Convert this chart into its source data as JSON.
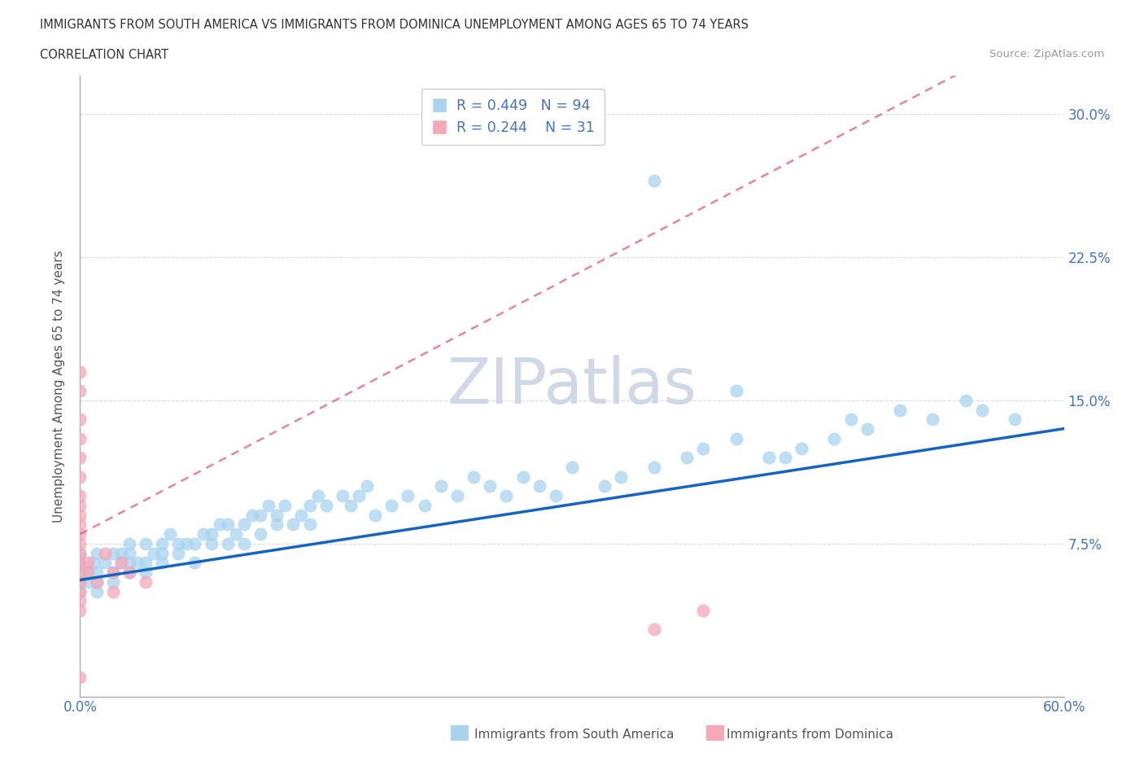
{
  "title_line1": "IMMIGRANTS FROM SOUTH AMERICA VS IMMIGRANTS FROM DOMINICA UNEMPLOYMENT AMONG AGES 65 TO 74 YEARS",
  "title_line2": "CORRELATION CHART",
  "source_text": "Source: ZipAtlas.com",
  "ylabel": "Unemployment Among Ages 65 to 74 years",
  "xlim": [
    0.0,
    0.6
  ],
  "ylim": [
    -0.005,
    0.32
  ],
  "xtick_positions": [
    0.0,
    0.075,
    0.15,
    0.225,
    0.3,
    0.375,
    0.45,
    0.525,
    0.6
  ],
  "xtick_labels": [
    "0.0%",
    "",
    "",
    "",
    "",
    "",
    "",
    "",
    "60.0%"
  ],
  "ytick_positions": [
    0.0,
    0.075,
    0.15,
    0.225,
    0.3
  ],
  "ytick_labels": [
    "",
    "7.5%",
    "15.0%",
    "22.5%",
    "30.0%"
  ],
  "r_south_america": 0.449,
  "n_south_america": 94,
  "r_dominica": 0.244,
  "n_dominica": 31,
  "color_south_america": "#a8d4f0",
  "color_dominica": "#f5a8b8",
  "color_trendline_sa": "#1565C0",
  "color_trendline_dom": "#e05070",
  "legend_text_color": "#4472C4",
  "tick_color": "#4472C4",
  "watermark": "ZIPatlas",
  "watermark_color": "#d0d8e8",
  "sa_x": [
    0.0,
    0.0,
    0.0,
    0.0,
    0.0,
    0.005,
    0.005,
    0.008,
    0.01,
    0.01,
    0.01,
    0.01,
    0.015,
    0.02,
    0.02,
    0.02,
    0.025,
    0.025,
    0.03,
    0.03,
    0.03,
    0.03,
    0.035,
    0.04,
    0.04,
    0.04,
    0.045,
    0.05,
    0.05,
    0.05,
    0.055,
    0.06,
    0.06,
    0.065,
    0.07,
    0.07,
    0.075,
    0.08,
    0.08,
    0.085,
    0.09,
    0.09,
    0.095,
    0.1,
    0.1,
    0.105,
    0.11,
    0.11,
    0.115,
    0.12,
    0.12,
    0.125,
    0.13,
    0.135,
    0.14,
    0.14,
    0.145,
    0.15,
    0.16,
    0.165,
    0.17,
    0.175,
    0.18,
    0.19,
    0.2,
    0.21,
    0.22,
    0.23,
    0.24,
    0.25,
    0.26,
    0.27,
    0.28,
    0.29,
    0.3,
    0.32,
    0.33,
    0.35,
    0.37,
    0.38,
    0.4,
    0.42,
    0.44,
    0.47,
    0.48,
    0.5,
    0.52,
    0.54,
    0.55,
    0.57,
    0.35,
    0.4,
    0.43,
    0.46
  ],
  "sa_y": [
    0.05,
    0.055,
    0.06,
    0.065,
    0.07,
    0.055,
    0.06,
    0.065,
    0.05,
    0.055,
    0.06,
    0.07,
    0.065,
    0.055,
    0.06,
    0.07,
    0.065,
    0.07,
    0.06,
    0.065,
    0.07,
    0.075,
    0.065,
    0.06,
    0.065,
    0.075,
    0.07,
    0.065,
    0.07,
    0.075,
    0.08,
    0.07,
    0.075,
    0.075,
    0.065,
    0.075,
    0.08,
    0.075,
    0.08,
    0.085,
    0.075,
    0.085,
    0.08,
    0.075,
    0.085,
    0.09,
    0.08,
    0.09,
    0.095,
    0.085,
    0.09,
    0.095,
    0.085,
    0.09,
    0.085,
    0.095,
    0.1,
    0.095,
    0.1,
    0.095,
    0.1,
    0.105,
    0.09,
    0.095,
    0.1,
    0.095,
    0.105,
    0.1,
    0.11,
    0.105,
    0.1,
    0.11,
    0.105,
    0.1,
    0.115,
    0.105,
    0.11,
    0.115,
    0.12,
    0.125,
    0.13,
    0.12,
    0.125,
    0.14,
    0.135,
    0.145,
    0.14,
    0.15,
    0.145,
    0.14,
    0.265,
    0.155,
    0.12,
    0.13
  ],
  "dom_x": [
    0.0,
    0.0,
    0.0,
    0.0,
    0.0,
    0.0,
    0.0,
    0.0,
    0.0,
    0.0,
    0.0,
    0.0,
    0.0,
    0.0,
    0.0,
    0.0,
    0.0,
    0.0,
    0.0,
    0.0,
    0.005,
    0.005,
    0.01,
    0.015,
    0.02,
    0.02,
    0.025,
    0.03,
    0.04,
    0.35,
    0.38
  ],
  "dom_y": [
    0.04,
    0.045,
    0.05,
    0.055,
    0.06,
    0.065,
    0.07,
    0.075,
    0.08,
    0.085,
    0.09,
    0.095,
    0.1,
    0.11,
    0.12,
    0.13,
    0.14,
    0.155,
    0.165,
    0.005,
    0.06,
    0.065,
    0.055,
    0.07,
    0.06,
    0.05,
    0.065,
    0.06,
    0.055,
    0.03,
    0.04
  ],
  "trendline_sa_slope": 0.132,
  "trendline_sa_intercept": 0.056,
  "trendline_dom_slope": 0.45,
  "trendline_dom_intercept": 0.08
}
